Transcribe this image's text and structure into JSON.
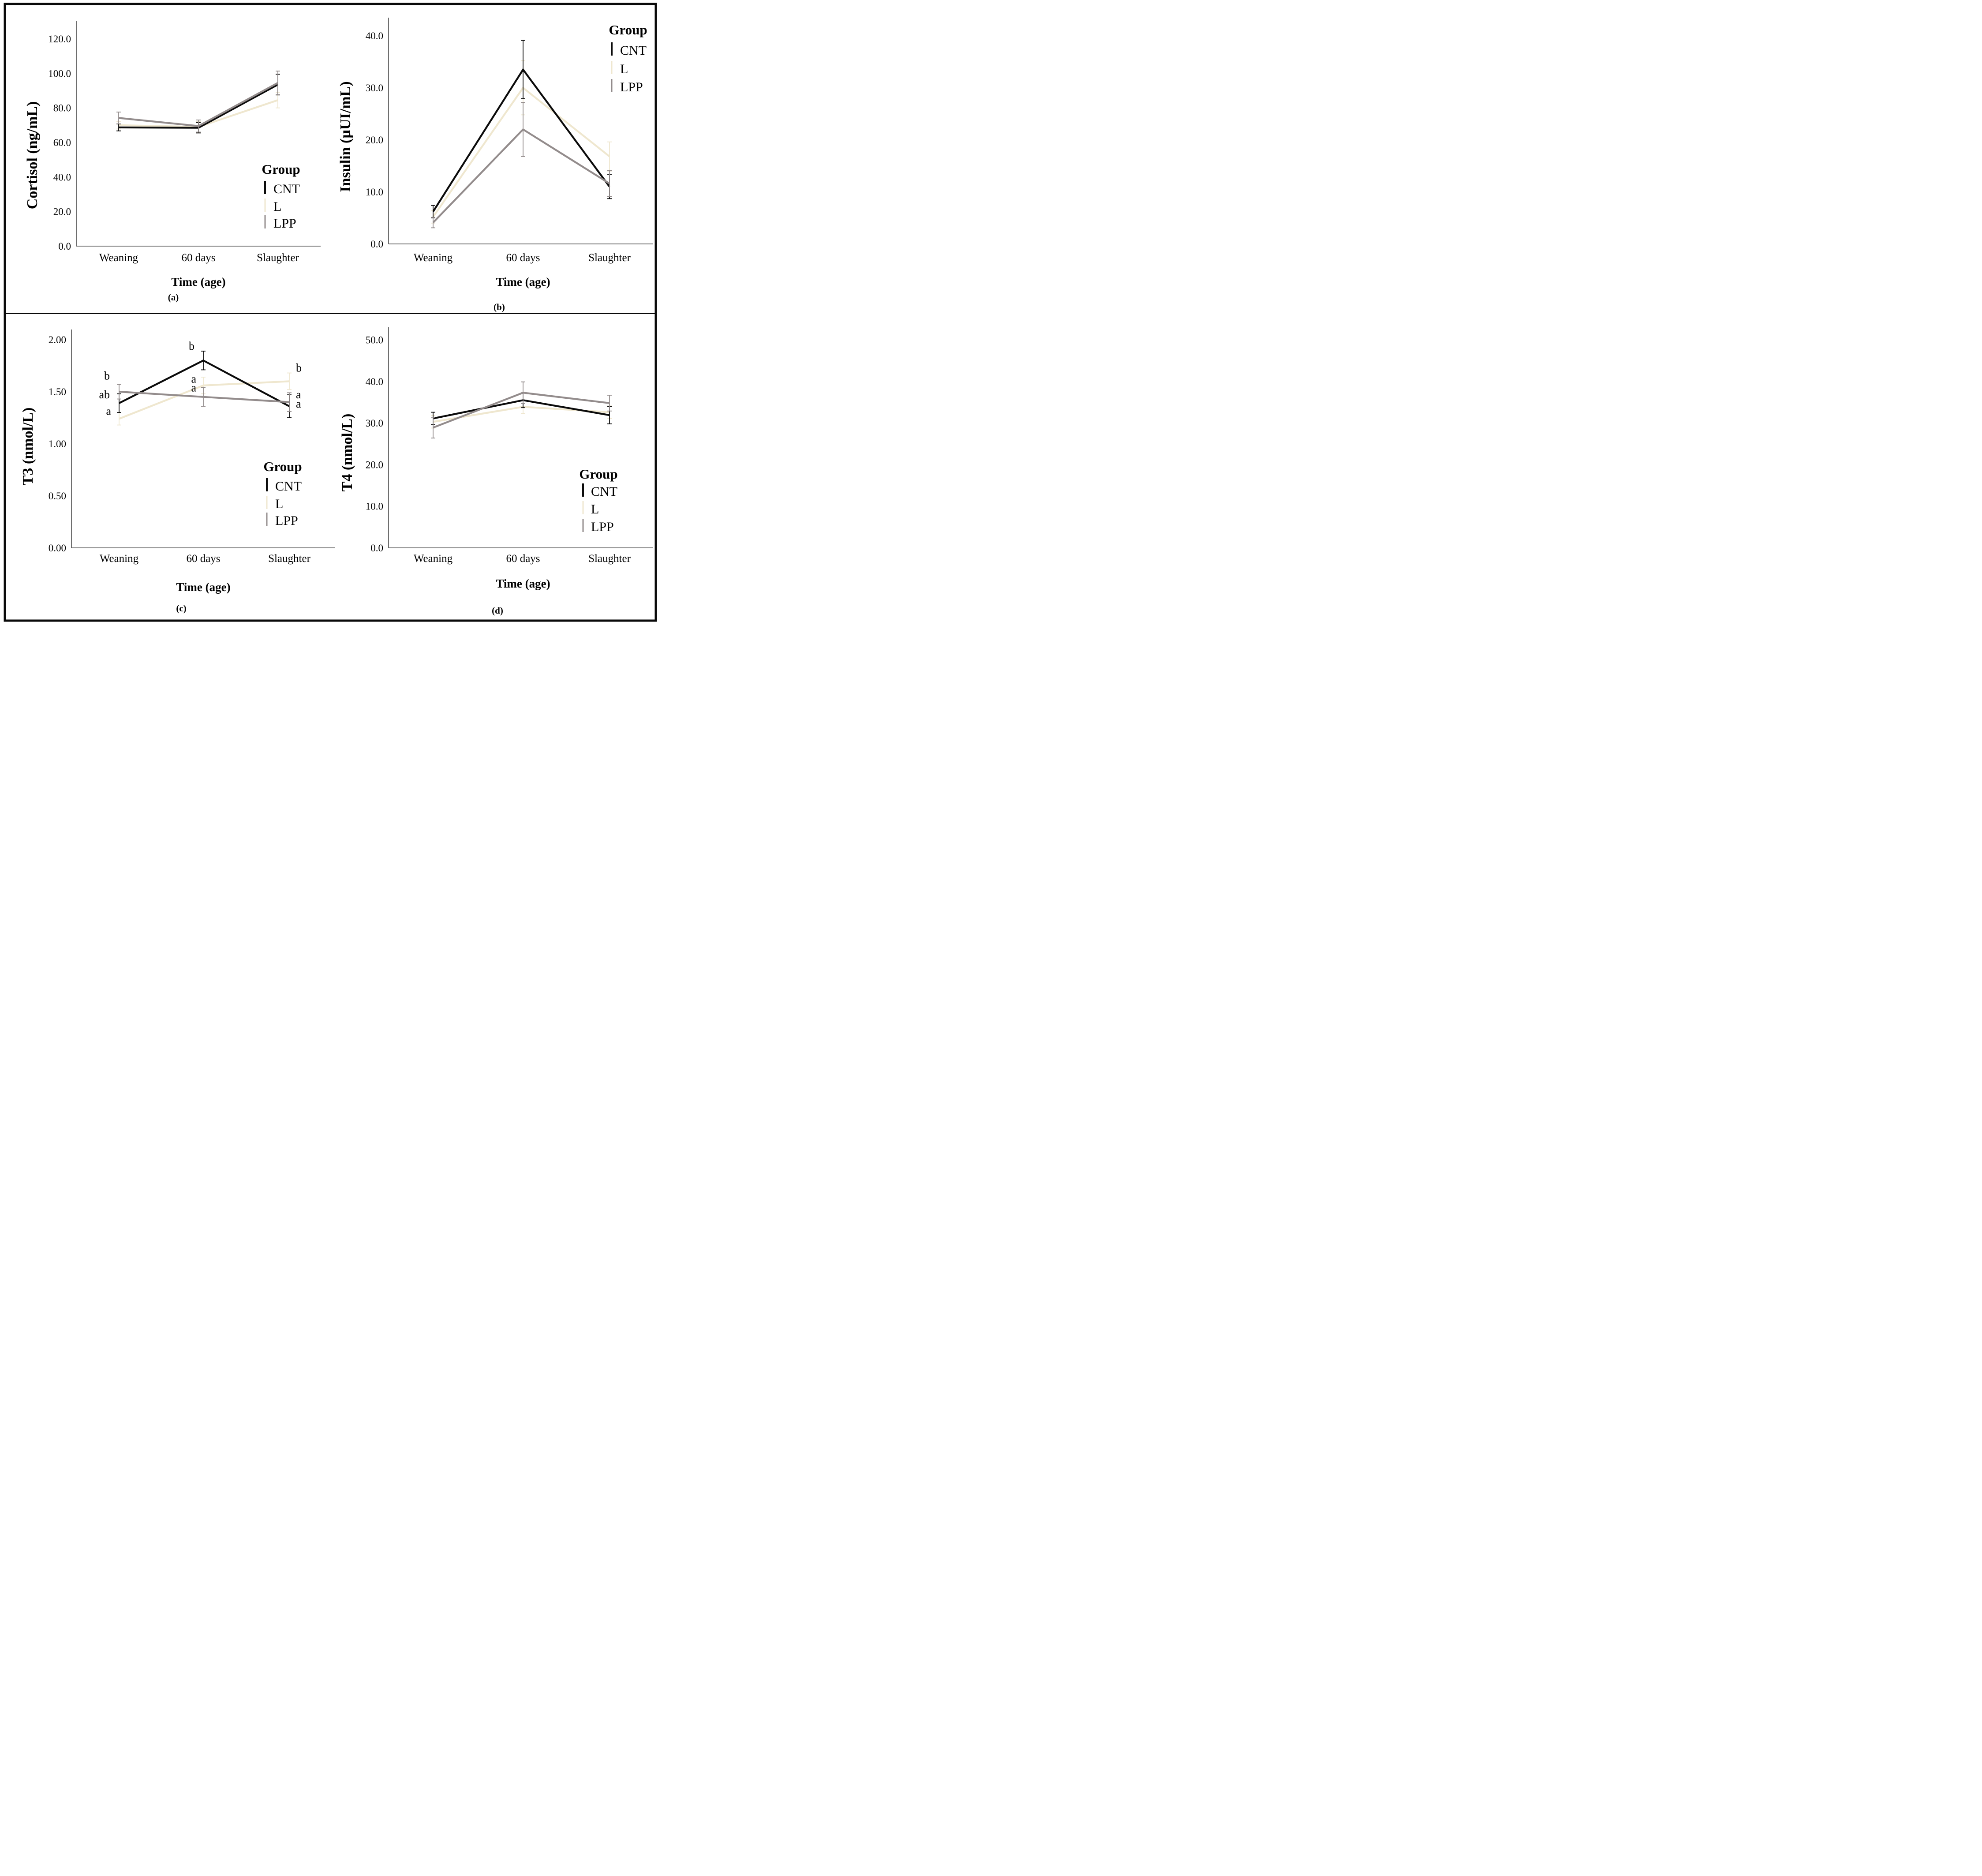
{
  "figure": {
    "background_color": "#ffffff",
    "frame_color": "#0a0a0a",
    "axis_color": "#4a4a4a",
    "group_factor_name": "Group",
    "time_points": [
      "Weaning",
      "60 days",
      "Slaughter"
    ]
  },
  "chart_data": [
    {
      "id": "a",
      "type": "line",
      "caption": "(a)",
      "ylabel": "Cortisol (ng/mL)",
      "xlabel": "Time (age)",
      "categories": [
        "Weaning",
        "60 days",
        "Slaughter"
      ],
      "ylim": [
        0,
        130
      ],
      "yticks": [
        0,
        20,
        40,
        60,
        80,
        100,
        120
      ],
      "ytick_labels": [
        "0.0",
        "20.0",
        "40.0",
        "60.0",
        "80.0",
        "100.0",
        "120.0"
      ],
      "grid": false,
      "error_bars": true,
      "legend": {
        "title": "Group",
        "position": "inside-right-middle"
      },
      "series": [
        {
          "name": "CNT",
          "color": "#0b0b0b",
          "values": [
            68.7,
            68.5,
            93.5
          ],
          "errors": [
            2.0,
            3.0,
            6.0
          ]
        },
        {
          "name": "L",
          "color": "#efe7cf",
          "values": [
            70.0,
            69.0,
            84.5
          ],
          "errors": [
            2.2,
            3.2,
            4.5
          ]
        },
        {
          "name": "LPP",
          "color": "#938c8c",
          "values": [
            74.2,
            69.5,
            94.5
          ],
          "errors": [
            3.4,
            3.5,
            6.8
          ]
        }
      ],
      "annotations": []
    },
    {
      "id": "b",
      "type": "line",
      "caption": "(b)",
      "ylabel": "Insulin (µUI/mL)",
      "xlabel": "Time (age)",
      "categories": [
        "Weaning",
        "60 days",
        "Slaughter"
      ],
      "ylim": [
        0,
        43.5
      ],
      "yticks": [
        0,
        10,
        20,
        30,
        40
      ],
      "ytick_labels": [
        "0.0",
        "10.0",
        "20.0",
        "30.0",
        "40.0"
      ],
      "grid": false,
      "error_bars": true,
      "legend": {
        "title": "Group",
        "position": "inside-top-right"
      },
      "series": [
        {
          "name": "CNT",
          "color": "#0b0b0b",
          "values": [
            6.2,
            33.5,
            11.0
          ],
          "errors": [
            1.2,
            5.6,
            2.3
          ]
        },
        {
          "name": "L",
          "color": "#efe7cf",
          "values": [
            5.2,
            30.0,
            16.8
          ],
          "errors": [
            1.2,
            5.2,
            2.8
          ]
        },
        {
          "name": "LPP",
          "color": "#938c8c",
          "values": [
            4.1,
            22.0,
            11.6
          ],
          "errors": [
            1.0,
            5.2,
            2.5
          ]
        }
      ],
      "annotations": []
    },
    {
      "id": "c",
      "type": "line",
      "caption": "(c)",
      "ylabel": "T3 (nmol/L)",
      "xlabel": "Time (age)",
      "categories": [
        "Weaning",
        "60 days",
        "Slaughter"
      ],
      "ylim": [
        0,
        2.1
      ],
      "yticks": [
        0,
        0.5,
        1.0,
        1.5,
        2.0
      ],
      "ytick_labels": [
        "0.00",
        "0.50",
        "1.00",
        "1.50",
        "2.00"
      ],
      "grid": false,
      "error_bars": true,
      "legend": {
        "title": "Group",
        "position": "inside-right-middle"
      },
      "series": [
        {
          "name": "CNT",
          "color": "#0b0b0b",
          "values": [
            1.39,
            1.8,
            1.36
          ],
          "errors": [
            0.09,
            0.09,
            0.11
          ]
        },
        {
          "name": "L",
          "color": "#efe7cf",
          "values": [
            1.24,
            1.56,
            1.6
          ],
          "errors": [
            0.06,
            0.08,
            0.08
          ]
        },
        {
          "name": "LPP",
          "color": "#938c8c",
          "values": [
            1.5,
            1.45,
            1.4
          ],
          "errors": [
            0.07,
            0.09,
            0.09
          ]
        }
      ],
      "annotations": [
        {
          "label": "b",
          "category_index": 0,
          "dx": -21,
          "value": 1.655
        },
        {
          "label": "ab",
          "category_index": 0,
          "dx": -21,
          "value": 1.475
        },
        {
          "label": "a",
          "category_index": 0,
          "dx": -18,
          "value": 1.315
        },
        {
          "label": "b",
          "category_index": 1,
          "dx": -20,
          "value": 1.94
        },
        {
          "label": "a",
          "category_index": 1,
          "dx": -16,
          "value": 1.625
        },
        {
          "label": "a",
          "category_index": 1,
          "dx": -16,
          "value": 1.54
        },
        {
          "label": "b",
          "category_index": 2,
          "dx": 15,
          "value": 1.73
        },
        {
          "label": "a",
          "category_index": 2,
          "dx": 15,
          "value": 1.475
        },
        {
          "label": "a",
          "category_index": 2,
          "dx": 15,
          "value": 1.385
        }
      ]
    },
    {
      "id": "d",
      "type": "line",
      "caption": "(d)",
      "ylabel": "T4 (nmol/L)",
      "xlabel": "Time (age)",
      "categories": [
        "Weaning",
        "60 days",
        "Slaughter"
      ],
      "ylim": [
        0,
        53
      ],
      "yticks": [
        0,
        10,
        20,
        30,
        40,
        50
      ],
      "ytick_labels": [
        "0.0",
        "10.0",
        "20.0",
        "30.0",
        "40.0",
        "50.0"
      ],
      "grid": false,
      "error_bars": true,
      "legend": {
        "title": "Group",
        "position": "inside-bottom-right"
      },
      "series": [
        {
          "name": "CNT",
          "color": "#0b0b0b",
          "values": [
            31.1,
            35.5,
            31.9
          ],
          "errors": [
            1.5,
            1.8,
            2.1
          ]
        },
        {
          "name": "L",
          "color": "#efe7cf",
          "values": [
            30.3,
            33.9,
            32.6
          ],
          "errors": [
            1.5,
            1.6,
            1.5
          ]
        },
        {
          "name": "LPP",
          "color": "#938c8c",
          "values": [
            28.9,
            37.3,
            34.8
          ],
          "errors": [
            2.5,
            2.6,
            1.9
          ]
        }
      ],
      "annotations": []
    }
  ]
}
